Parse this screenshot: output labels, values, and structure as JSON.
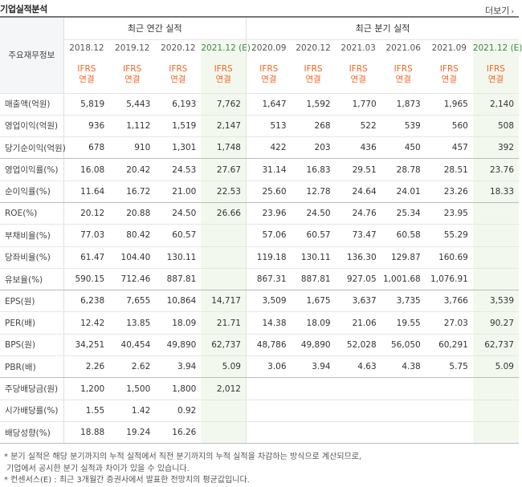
{
  "header": {
    "title": "기업실적분석",
    "more_label": "더보기",
    "more_arrow": "›"
  },
  "table": {
    "row_header_label": "주요재무정보",
    "groups": {
      "annual": "최근 연간 실적",
      "quarterly": "최근 분기 실적"
    },
    "periods": [
      "2018.12",
      "2019.12",
      "2020.12",
      "2021.12 (E)",
      "2020.09",
      "2020.12",
      "2021.03",
      "2021.06",
      "2021.09",
      "2021.12 (E)"
    ],
    "ifrs_line1": "IFRS",
    "ifrs_line2": "연결",
    "rows": [
      {
        "label": "매출액(억원)",
        "values": [
          "5,819",
          "5,443",
          "6,193",
          "7,762",
          "1,647",
          "1,592",
          "1,770",
          "1,873",
          "1,965",
          "2,140"
        ]
      },
      {
        "label": "영업이익(억원)",
        "values": [
          "936",
          "1,112",
          "1,519",
          "2,147",
          "513",
          "268",
          "522",
          "539",
          "560",
          "508"
        ]
      },
      {
        "label": "당기순이익(억원)",
        "values": [
          "678",
          "910",
          "1,301",
          "1,748",
          "422",
          "203",
          "436",
          "450",
          "457",
          "392"
        ]
      },
      {
        "label": "영업이익률(%)",
        "values": [
          "16.08",
          "20.42",
          "24.53",
          "27.67",
          "31.14",
          "16.83",
          "29.51",
          "28.78",
          "28.51",
          "23.76"
        ]
      },
      {
        "label": "순이익률(%)",
        "values": [
          "11.64",
          "16.72",
          "21.00",
          "22.53",
          "25.60",
          "12.78",
          "24.64",
          "24.01",
          "23.26",
          "18.33"
        ]
      },
      {
        "label": "ROE(%)",
        "values": [
          "20.12",
          "20.88",
          "24.50",
          "26.66",
          "23.96",
          "24.50",
          "24.76",
          "25.34",
          "23.95",
          ""
        ]
      },
      {
        "label": "부채비율(%)",
        "values": [
          "77.03",
          "80.42",
          "60.57",
          "",
          "57.06",
          "60.57",
          "73.47",
          "60.58",
          "55.29",
          ""
        ]
      },
      {
        "label": "당좌비율(%)",
        "values": [
          "61.47",
          "104.40",
          "130.11",
          "",
          "119.18",
          "130.11",
          "136.30",
          "129.87",
          "160.69",
          ""
        ]
      },
      {
        "label": "유보율(%)",
        "values": [
          "590.15",
          "712.46",
          "887.81",
          "",
          "867.31",
          "887.81",
          "927.05",
          "1,001.68",
          "1,076.91",
          ""
        ]
      },
      {
        "label": "EPS(원)",
        "values": [
          "6,238",
          "7,655",
          "10,864",
          "14,717",
          "3,509",
          "1,675",
          "3,637",
          "3,735",
          "3,766",
          "3,539"
        ]
      },
      {
        "label": "PER(배)",
        "values": [
          "12.42",
          "13.85",
          "18.09",
          "21.71",
          "14.38",
          "18.09",
          "21.06",
          "19.55",
          "27.03",
          "90.27"
        ]
      },
      {
        "label": "BPS(원)",
        "values": [
          "34,251",
          "40,454",
          "49,890",
          "62,737",
          "48,786",
          "49,890",
          "52,028",
          "56,050",
          "60,291",
          "62,737"
        ]
      },
      {
        "label": "PBR(배)",
        "values": [
          "2.26",
          "2.62",
          "3.94",
          "5.09",
          "3.06",
          "3.94",
          "4.63",
          "4.38",
          "5.75",
          "5.09"
        ]
      },
      {
        "label": "주당배당금(원)",
        "values": [
          "1,200",
          "1,500",
          "1,800",
          "2,012",
          "",
          "",
          "",
          "",
          "",
          ""
        ]
      },
      {
        "label": "시가배당률(%)",
        "values": [
          "1.55",
          "1.42",
          "0.92",
          "",
          "",
          "",
          "",
          "",
          "",
          ""
        ]
      },
      {
        "label": "배당성향(%)",
        "values": [
          "18.88",
          "19.24",
          "16.26",
          "",
          "",
          "",
          "",
          "",
          "",
          ""
        ]
      }
    ]
  },
  "notes": [
    "* 분기 실적은 해당 분기까지의 누적 실적에서 직전 분기까지의 누적 실적을 차감하는 방식으로 계산되므로,",
    "기업에서 공시한 분기 실적과 차이가 있을 수 있습니다.",
    "* 컨센서스(E) : 최근 3개월간 증권사에서 발표한 전망치의 평균값입니다."
  ],
  "colors": {
    "ifrs": "#f26522",
    "estimate_bg": "#f3f8ef",
    "estimate_text": "#3c8a3c",
    "label_bg": "#f4f6f8"
  }
}
